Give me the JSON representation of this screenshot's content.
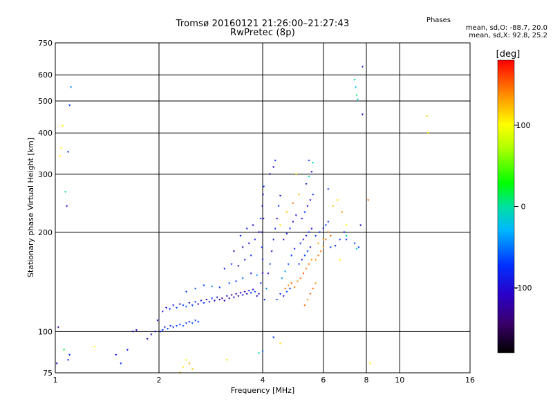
{
  "header": {
    "title": "Tromsø 20160121 21:26:00–21:27:43",
    "subtitle": "RwPretec (8p)"
  },
  "stats": {
    "heading": "Phases",
    "o_line": "mean, sd,O: -88.7, 20.0",
    "x_line": "mean, sd,X:  92.8, 25.2"
  },
  "colorbar": {
    "unit": "[deg]",
    "range": [
      -180,
      180
    ],
    "ticks": [
      {
        "value": 100,
        "label": "100"
      },
      {
        "value": 0,
        "label": "0"
      },
      {
        "value": -100,
        "label": "-100"
      }
    ]
  },
  "chart_data": {
    "type": "scatter",
    "title": "Tromsø 20160121 21:26:00–21:27:43",
    "subtitle": "RwPretec (8p)",
    "xlabel": "Frequency [MHz]",
    "ylabel": "Stationary phase Virtual Height [km]",
    "x_scale": "log",
    "y_scale": "log",
    "xlim": [
      1,
      16
    ],
    "ylim": [
      75,
      750
    ],
    "x_ticks": [
      {
        "value": 1,
        "label": "1"
      },
      {
        "value": 2,
        "label": "2"
      },
      {
        "value": 4,
        "label": "4"
      },
      {
        "value": 6,
        "label": "6"
      },
      {
        "value": 8,
        "label": "8"
      },
      {
        "value": 10,
        "label": "10"
      },
      {
        "value": 16,
        "label": "16"
      }
    ],
    "y_ticks": [
      {
        "value": 75,
        "label": "75"
      },
      {
        "value": 100,
        "label": "100"
      },
      {
        "value": 200,
        "label": "200"
      },
      {
        "value": 300,
        "label": "300"
      },
      {
        "value": 400,
        "label": "400"
      },
      {
        "value": 500,
        "label": "500"
      },
      {
        "value": 600,
        "label": "600"
      },
      {
        "value": 750,
        "label": "750"
      }
    ],
    "grid": true,
    "color_variable": "phase [deg]",
    "points": [
      [
        1.01,
        80,
        -120
      ],
      [
        1.02,
        103,
        -140
      ],
      [
        1.04,
        360,
        110
      ],
      [
        1.03,
        340,
        100
      ],
      [
        1.05,
        420,
        105
      ],
      [
        1.06,
        88,
        20
      ],
      [
        1.09,
        82,
        -110
      ],
      [
        1.1,
        85,
        -100
      ],
      [
        1.07,
        265,
        -10
      ],
      [
        1.08,
        240,
        -120
      ],
      [
        1.09,
        350,
        -100
      ],
      [
        1.11,
        550,
        -60
      ],
      [
        1.1,
        485,
        -100
      ],
      [
        1.3,
        90,
        100
      ],
      [
        1.5,
        85,
        -110
      ],
      [
        1.55,
        80,
        -100
      ],
      [
        1.62,
        88,
        -110
      ],
      [
        1.68,
        100,
        -120
      ],
      [
        1.72,
        101,
        -120
      ],
      [
        1.85,
        95,
        -130
      ],
      [
        1.9,
        98,
        -120
      ],
      [
        1.95,
        100,
        -110
      ],
      [
        1.98,
        108,
        -120
      ],
      [
        2.02,
        100,
        -110
      ],
      [
        2.05,
        101,
        -100
      ],
      [
        2.08,
        103,
        -110
      ],
      [
        2.12,
        102,
        -90
      ],
      [
        2.16,
        104,
        -100
      ],
      [
        2.2,
        103,
        -110
      ],
      [
        2.25,
        104,
        -90
      ],
      [
        2.3,
        105,
        -100
      ],
      [
        2.35,
        104,
        -80
      ],
      [
        2.4,
        106,
        -90
      ],
      [
        2.45,
        107,
        -100
      ],
      [
        2.5,
        106,
        -80
      ],
      [
        2.55,
        108,
        -90
      ],
      [
        2.6,
        107,
        -100
      ],
      [
        2.05,
        115,
        -110
      ],
      [
        2.1,
        118,
        -120
      ],
      [
        2.15,
        117,
        -100
      ],
      [
        2.2,
        120,
        -110
      ],
      [
        2.25,
        118,
        -90
      ],
      [
        2.3,
        121,
        -120
      ],
      [
        2.35,
        120,
        -100
      ],
      [
        2.4,
        119,
        -80
      ],
      [
        2.45,
        122,
        -110
      ],
      [
        2.5,
        120,
        -100
      ],
      [
        2.55,
        123,
        -90
      ],
      [
        2.6,
        121,
        -120
      ],
      [
        2.65,
        124,
        -110
      ],
      [
        2.7,
        122,
        -100
      ],
      [
        2.75,
        125,
        -130
      ],
      [
        2.8,
        123,
        -110
      ],
      [
        2.85,
        126,
        -100
      ],
      [
        2.9,
        124,
        -120
      ],
      [
        2.95,
        127,
        -110
      ],
      [
        3.0,
        125,
        -130
      ],
      [
        3.05,
        126,
        -140
      ],
      [
        3.1,
        124,
        -120
      ],
      [
        3.15,
        128,
        -110
      ],
      [
        3.2,
        126,
        -130
      ],
      [
        3.25,
        129,
        -140
      ],
      [
        3.3,
        127,
        -120
      ],
      [
        3.35,
        130,
        -130
      ],
      [
        3.4,
        128,
        -140
      ],
      [
        3.45,
        131,
        -120
      ],
      [
        3.5,
        129,
        -110
      ],
      [
        3.55,
        132,
        -130
      ],
      [
        3.6,
        130,
        -120
      ],
      [
        3.65,
        133,
        -110
      ],
      [
        3.7,
        131,
        -100
      ],
      [
        3.75,
        134,
        -120
      ],
      [
        3.8,
        132,
        -90
      ],
      [
        3.85,
        128,
        -130
      ],
      [
        2.4,
        132,
        -90
      ],
      [
        2.55,
        135,
        -80
      ],
      [
        2.7,
        138,
        -90
      ],
      [
        2.85,
        137,
        -70
      ],
      [
        3.0,
        136,
        -100
      ],
      [
        3.2,
        140,
        -90
      ],
      [
        3.35,
        142,
        -100
      ],
      [
        3.5,
        145,
        -80
      ],
      [
        3.7,
        150,
        -110
      ],
      [
        3.85,
        148,
        -60
      ],
      [
        3.1,
        155,
        -110
      ],
      [
        3.25,
        160,
        -100
      ],
      [
        3.4,
        158,
        -120
      ],
      [
        3.55,
        165,
        -110
      ],
      [
        3.7,
        170,
        -100
      ],
      [
        3.3,
        175,
        -120
      ],
      [
        3.5,
        180,
        -130
      ],
      [
        3.65,
        185,
        -120
      ],
      [
        3.8,
        190,
        -110
      ],
      [
        3.9,
        200,
        -120
      ],
      [
        3.45,
        195,
        -100
      ],
      [
        3.6,
        205,
        -110
      ],
      [
        3.75,
        210,
        -120
      ],
      [
        3.95,
        220,
        -100
      ],
      [
        3.9,
        130,
        -110
      ],
      [
        3.95,
        140,
        -100
      ],
      [
        4.0,
        150,
        -120
      ],
      [
        4.0,
        165,
        -110
      ],
      [
        3.98,
        180,
        -100
      ],
      [
        3.97,
        200,
        -110
      ],
      [
        4.02,
        220,
        -130
      ],
      [
        3.99,
        240,
        -120
      ],
      [
        4.01,
        260,
        -120
      ],
      [
        4.03,
        275,
        -100
      ],
      [
        4.05,
        125,
        -100
      ],
      [
        4.1,
        135,
        -60
      ],
      [
        4.15,
        150,
        -120
      ],
      [
        4.2,
        160,
        -100
      ],
      [
        4.25,
        175,
        -120
      ],
      [
        4.3,
        190,
        -110
      ],
      [
        4.35,
        205,
        -100
      ],
      [
        4.4,
        220,
        -120
      ],
      [
        4.45,
        240,
        -100
      ],
      [
        4.5,
        258,
        -110
      ],
      [
        4.2,
        300,
        -110
      ],
      [
        4.3,
        315,
        -120
      ],
      [
        4.35,
        330,
        -100
      ],
      [
        4.4,
        125,
        -90
      ],
      [
        4.5,
        130,
        -100
      ],
      [
        4.6,
        128,
        -110
      ],
      [
        4.7,
        132,
        -90
      ],
      [
        4.8,
        135,
        -100
      ],
      [
        4.55,
        145,
        -60
      ],
      [
        4.65,
        152,
        -50
      ],
      [
        4.75,
        160,
        -90
      ],
      [
        4.85,
        170,
        -100
      ],
      [
        4.95,
        178,
        -110
      ],
      [
        4.6,
        190,
        -120
      ],
      [
        4.7,
        198,
        -110
      ],
      [
        4.8,
        205,
        -100
      ],
      [
        4.9,
        215,
        -120
      ],
      [
        5.0,
        225,
        -110
      ],
      [
        4.65,
        135,
        150
      ],
      [
        4.75,
        138,
        140
      ],
      [
        4.85,
        140,
        155
      ],
      [
        4.95,
        136,
        150
      ],
      [
        5.05,
        142,
        140
      ],
      [
        5.15,
        145,
        150
      ],
      [
        5.25,
        150,
        160
      ],
      [
        5.35,
        155,
        145
      ],
      [
        5.45,
        160,
        150
      ],
      [
        5.55,
        165,
        140
      ],
      [
        5.1,
        160,
        -100
      ],
      [
        5.2,
        165,
        -110
      ],
      [
        5.3,
        170,
        -100
      ],
      [
        5.4,
        175,
        -90
      ],
      [
        5.5,
        180,
        -110
      ],
      [
        5.15,
        185,
        -100
      ],
      [
        5.25,
        190,
        -120
      ],
      [
        5.35,
        195,
        -110
      ],
      [
        5.45,
        200,
        -100
      ],
      [
        5.55,
        205,
        -120
      ],
      [
        5.2,
        220,
        -110
      ],
      [
        5.3,
        230,
        -100
      ],
      [
        5.4,
        240,
        -120
      ],
      [
        5.5,
        250,
        -110
      ],
      [
        5.6,
        260,
        -100
      ],
      [
        5.35,
        280,
        -110
      ],
      [
        5.45,
        295,
        -10
      ],
      [
        5.55,
        305,
        -120
      ],
      [
        5.45,
        330,
        -100
      ],
      [
        5.6,
        325,
        -20
      ],
      [
        5.7,
        165,
        140
      ],
      [
        5.8,
        170,
        150
      ],
      [
        5.9,
        175,
        145
      ],
      [
        6.0,
        180,
        135
      ],
      [
        6.1,
        190,
        150
      ],
      [
        5.7,
        195,
        -90
      ],
      [
        5.85,
        200,
        -100
      ],
      [
        6.0,
        205,
        -110
      ],
      [
        6.1,
        210,
        -90
      ],
      [
        6.2,
        215,
        -100
      ],
      [
        5.8,
        185,
        130
      ],
      [
        6.0,
        190,
        140
      ],
      [
        6.2,
        200,
        145
      ],
      [
        6.3,
        195,
        150
      ],
      [
        6.3,
        180,
        -100
      ],
      [
        6.5,
        182,
        -110
      ],
      [
        6.7,
        190,
        -100
      ],
      [
        6.9,
        200,
        -110
      ],
      [
        7.0,
        195,
        -10
      ],
      [
        6.4,
        240,
        120
      ],
      [
        6.6,
        250,
        110
      ],
      [
        6.8,
        230,
        140
      ],
      [
        7.0,
        210,
        100
      ],
      [
        6.2,
        270,
        -100
      ],
      [
        5.0,
        300,
        110
      ],
      [
        5.1,
        260,
        130
      ],
      [
        4.9,
        245,
        150
      ],
      [
        4.7,
        230,
        120
      ],
      [
        4.5,
        210,
        110
      ],
      [
        5.3,
        120,
        150
      ],
      [
        5.4,
        125,
        140
      ],
      [
        5.5,
        130,
        155
      ],
      [
        5.6,
        135,
        150
      ],
      [
        5.7,
        140,
        140
      ],
      [
        6.7,
        165,
        100
      ],
      [
        7.0,
        190,
        -100
      ],
      [
        7.4,
        185,
        -90
      ],
      [
        7.6,
        180,
        -100
      ],
      [
        7.5,
        178,
        -30
      ],
      [
        7.4,
        580,
        0
      ],
      [
        7.45,
        550,
        -30
      ],
      [
        7.5,
        520,
        10
      ],
      [
        7.55,
        505,
        -20
      ],
      [
        7.8,
        635,
        -110
      ],
      [
        7.8,
        455,
        -120
      ],
      [
        7.7,
        210,
        -130
      ],
      [
        8.1,
        250,
        150
      ],
      [
        8.2,
        80,
        100
      ],
      [
        12.0,
        450,
        120
      ],
      [
        12.1,
        400,
        110
      ],
      [
        2.3,
        75,
        120
      ],
      [
        2.35,
        78,
        110
      ],
      [
        2.4,
        82,
        100
      ],
      [
        2.45,
        80,
        130
      ],
      [
        2.5,
        77,
        120
      ],
      [
        3.15,
        82,
        110
      ],
      [
        3.9,
        86,
        -10
      ],
      [
        4.0,
        87,
        -80
      ],
      [
        4.3,
        96,
        -100
      ],
      [
        4.5,
        92,
        110
      ]
    ]
  }
}
